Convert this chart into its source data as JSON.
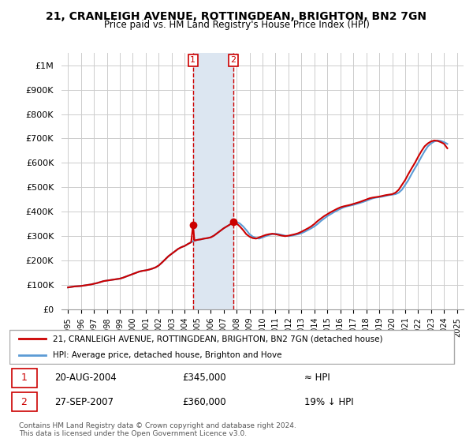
{
  "title": "21, CRANLEIGH AVENUE, ROTTINGDEAN, BRIGHTON, BN2 7GN",
  "subtitle": "Price paid vs. HM Land Registry's House Price Index (HPI)",
  "legend_line1": "21, CRANLEIGH AVENUE, ROTTINGDEAN, BRIGHTON, BN2 7GN (detached house)",
  "legend_line2": "HPI: Average price, detached house, Brighton and Hove",
  "annotation1_label": "1",
  "annotation1_date": "20-AUG-2004",
  "annotation1_price": "£345,000",
  "annotation1_hpi": "≈ HPI",
  "annotation1_year": 2004.64,
  "annotation1_value": 345000,
  "annotation2_label": "2",
  "annotation2_date": "27-SEP-2007",
  "annotation2_price": "£360,000",
  "annotation2_hpi": "19% ↓ HPI",
  "annotation2_year": 2007.75,
  "annotation2_value": 360000,
  "footnote": "Contains HM Land Registry data © Crown copyright and database right 2024.\nThis data is licensed under the Open Government Licence v3.0.",
  "red_line_color": "#cc0000",
  "blue_line_color": "#5b9bd5",
  "shaded_color": "#dce6f1",
  "annotation_box_color": "#cc0000",
  "grid_color": "#cccccc",
  "bg_color": "#ffffff",
  "ylim": [
    0,
    1050000
  ],
  "xlim_start": 1994.5,
  "xlim_end": 2025.5,
  "hpi_x": [
    1995,
    1995.25,
    1995.5,
    1995.75,
    1996,
    1996.25,
    1996.5,
    1996.75,
    1997,
    1997.25,
    1997.5,
    1997.75,
    1998,
    1998.25,
    1998.5,
    1998.75,
    1999,
    1999.25,
    1999.5,
    1999.75,
    2000,
    2000.25,
    2000.5,
    2000.75,
    2001,
    2001.25,
    2001.5,
    2001.75,
    2002,
    2002.25,
    2002.5,
    2002.75,
    2003,
    2003.25,
    2003.5,
    2003.75,
    2004,
    2004.25,
    2004.5,
    2004.75,
    2005,
    2005.25,
    2005.5,
    2005.75,
    2006,
    2006.25,
    2006.5,
    2006.75,
    2007,
    2007.25,
    2007.5,
    2007.75,
    2008,
    2008.25,
    2008.5,
    2008.75,
    2009,
    2009.25,
    2009.5,
    2009.75,
    2010,
    2010.25,
    2010.5,
    2010.75,
    2011,
    2011.25,
    2011.5,
    2011.75,
    2012,
    2012.25,
    2012.5,
    2012.75,
    2013,
    2013.25,
    2013.5,
    2013.75,
    2014,
    2014.25,
    2014.5,
    2014.75,
    2015,
    2015.25,
    2015.5,
    2015.75,
    2016,
    2016.25,
    2016.5,
    2016.75,
    2017,
    2017.25,
    2017.5,
    2017.75,
    2018,
    2018.25,
    2018.5,
    2018.75,
    2019,
    2019.25,
    2019.5,
    2019.75,
    2020,
    2020.25,
    2020.5,
    2020.75,
    2021,
    2021.25,
    2021.5,
    2021.75,
    2022,
    2022.25,
    2022.5,
    2022.75,
    2023,
    2023.25,
    2023.5,
    2023.75,
    2024,
    2024.25
  ],
  "hpi_y": [
    90000,
    92000,
    94000,
    95000,
    96000,
    98000,
    100000,
    102000,
    105000,
    108000,
    112000,
    116000,
    118000,
    120000,
    122000,
    124000,
    126000,
    130000,
    135000,
    140000,
    145000,
    150000,
    155000,
    158000,
    160000,
    163000,
    167000,
    172000,
    180000,
    192000,
    205000,
    218000,
    228000,
    238000,
    248000,
    255000,
    260000,
    268000,
    275000,
    282000,
    285000,
    287000,
    290000,
    292000,
    295000,
    302000,
    312000,
    322000,
    332000,
    340000,
    348000,
    355000,
    358000,
    352000,
    340000,
    325000,
    308000,
    298000,
    292000,
    290000,
    295000,
    300000,
    305000,
    308000,
    310000,
    308000,
    305000,
    302000,
    300000,
    302000,
    305000,
    308000,
    312000,
    318000,
    325000,
    332000,
    340000,
    350000,
    362000,
    372000,
    382000,
    390000,
    398000,
    405000,
    412000,
    418000,
    422000,
    425000,
    428000,
    432000,
    436000,
    440000,
    445000,
    450000,
    455000,
    458000,
    460000,
    462000,
    465000,
    468000,
    470000,
    472000,
    478000,
    490000,
    510000,
    530000,
    555000,
    578000,
    600000,
    625000,
    648000,
    668000,
    680000,
    688000,
    692000,
    690000,
    685000,
    678000
  ],
  "red_x": [
    1995,
    1995.25,
    1995.5,
    1995.75,
    1996,
    1996.25,
    1996.5,
    1996.75,
    1997,
    1997.25,
    1997.5,
    1997.75,
    1998,
    1998.25,
    1998.5,
    1998.75,
    1999,
    1999.25,
    1999.5,
    1999.75,
    2000,
    2000.25,
    2000.5,
    2000.75,
    2001,
    2001.25,
    2001.5,
    2001.75,
    2002,
    2002.25,
    2002.5,
    2002.75,
    2003,
    2003.25,
    2003.5,
    2003.75,
    2004,
    2004.25,
    2004.5,
    2004.64,
    2004.75,
    2005,
    2005.25,
    2005.5,
    2005.75,
    2006,
    2006.25,
    2006.5,
    2006.75,
    2007,
    2007.25,
    2007.5,
    2007.75,
    2008,
    2008.25,
    2008.5,
    2008.75,
    2009,
    2009.25,
    2009.5,
    2009.75,
    2010,
    2010.25,
    2010.5,
    2010.75,
    2011,
    2011.25,
    2011.5,
    2011.75,
    2012,
    2012.25,
    2012.5,
    2012.75,
    2013,
    2013.25,
    2013.5,
    2013.75,
    2014,
    2014.25,
    2014.5,
    2014.75,
    2015,
    2015.25,
    2015.5,
    2015.75,
    2016,
    2016.25,
    2016.5,
    2016.75,
    2017,
    2017.25,
    2017.5,
    2017.75,
    2018,
    2018.25,
    2018.5,
    2018.75,
    2019,
    2019.25,
    2019.5,
    2019.75,
    2020,
    2020.25,
    2020.5,
    2020.75,
    2021,
    2021.25,
    2021.5,
    2021.75,
    2022,
    2022.25,
    2022.5,
    2022.75,
    2023,
    2023.25,
    2023.5,
    2023.75,
    2024,
    2024.25
  ],
  "red_y": [
    90000,
    92000,
    94000,
    95000,
    96000,
    98000,
    100000,
    102000,
    105000,
    108000,
    112000,
    116000,
    118000,
    120000,
    122000,
    124000,
    126000,
    130000,
    135000,
    140000,
    145000,
    150000,
    155000,
    158000,
    160000,
    163000,
    167000,
    172000,
    180000,
    192000,
    205000,
    218000,
    228000,
    238000,
    248000,
    255000,
    260000,
    268000,
    275000,
    345000,
    282000,
    285000,
    287000,
    290000,
    292000,
    295000,
    302000,
    312000,
    322000,
    332000,
    340000,
    348000,
    360000,
    352000,
    340000,
    325000,
    308000,
    298000,
    292000,
    290000,
    295000,
    300000,
    305000,
    308000,
    310000,
    308000,
    305000,
    302000,
    300000,
    302000,
    305000,
    308000,
    312000,
    318000,
    325000,
    332000,
    340000,
    350000,
    362000,
    372000,
    382000,
    390000,
    398000,
    405000,
    412000,
    418000,
    422000,
    425000,
    428000,
    432000,
    436000,
    440000,
    445000,
    450000,
    455000,
    458000,
    460000,
    462000,
    465000,
    468000,
    470000,
    472000,
    478000,
    490000,
    510000,
    530000,
    555000,
    578000,
    600000,
    625000,
    648000,
    668000,
    680000,
    688000,
    692000,
    690000,
    685000,
    678000,
    660000
  ]
}
